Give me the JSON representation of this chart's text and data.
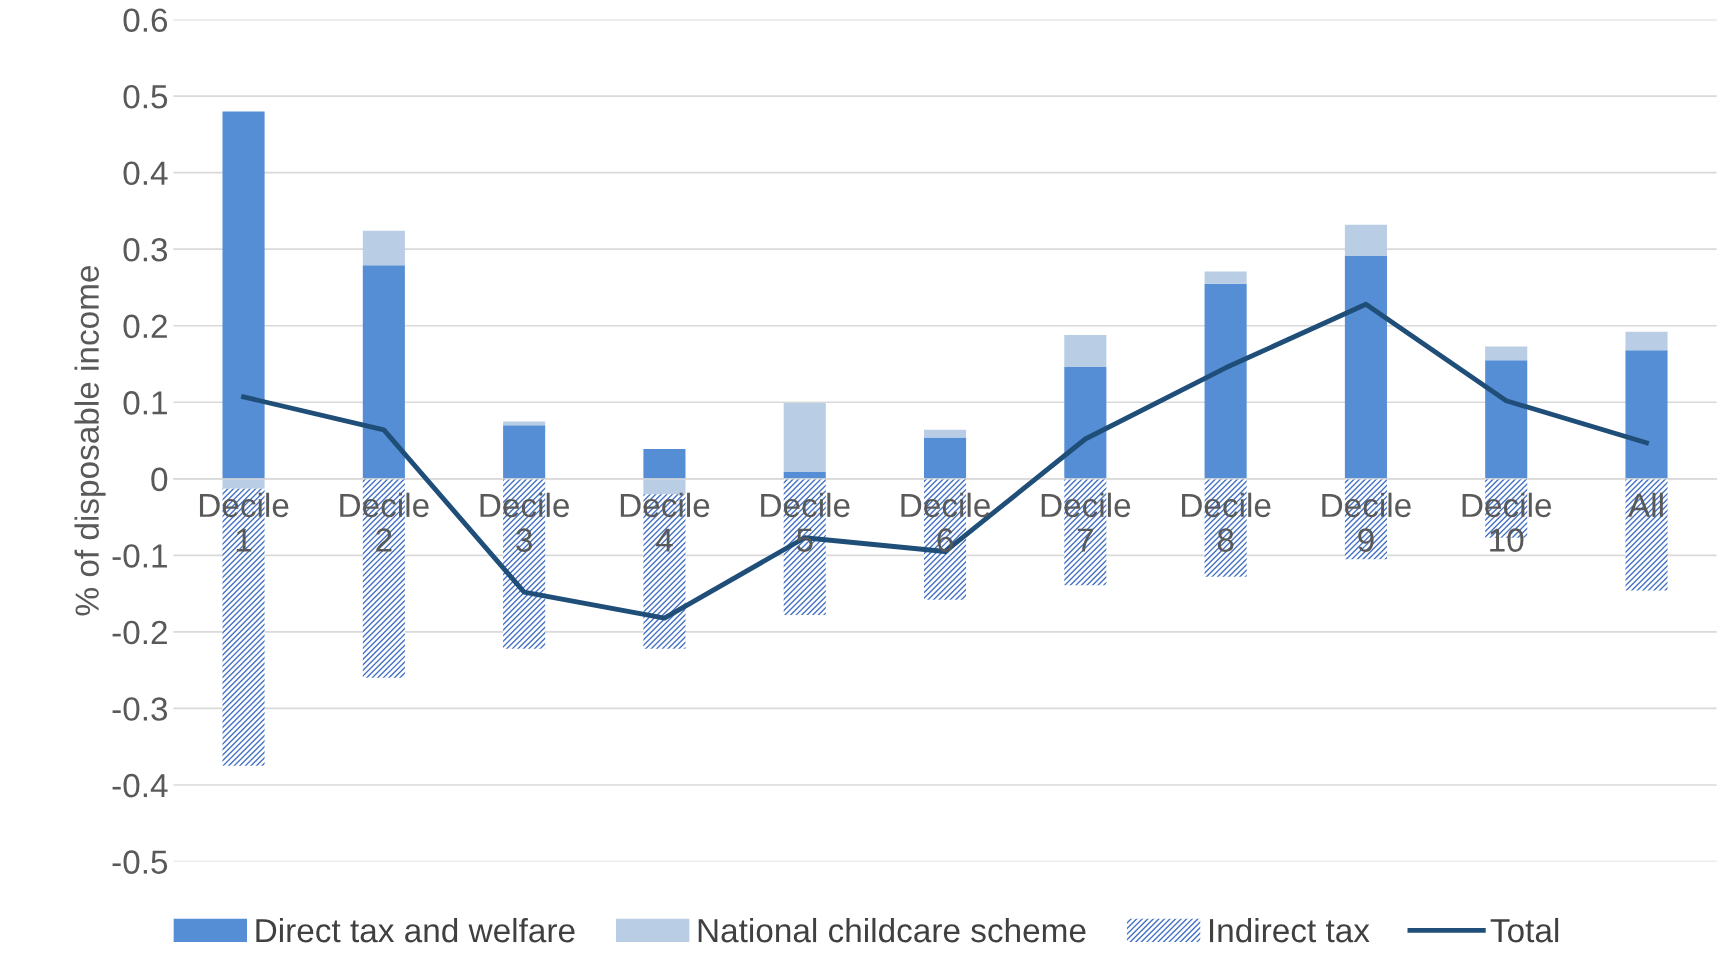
{
  "chart_data": {
    "type": "bar",
    "stacked": true,
    "ylabel": "% of disposable income",
    "categories": [
      "Decile\n1",
      "Decile\n2",
      "Decile\n3",
      "Decile\n4",
      "Decile\n5",
      "Decile\n6",
      "Decile\n7",
      "Decile\n8",
      "Decile\n9",
      "Decile\n10",
      "All"
    ],
    "series": [
      {
        "name": "Direct tax and welfare",
        "color": "#558ed5",
        "values": [
          0.48,
          0.279,
          0.07,
          0.039,
          0.009,
          0.054,
          0.146,
          0.255,
          0.291,
          0.155,
          0.168
        ]
      },
      {
        "name": "National childcare scheme",
        "color": "#b9cde5",
        "values": [
          -0.013,
          0.045,
          0.005,
          -0.02,
          0.09,
          0.01,
          0.042,
          0.016,
          0.041,
          0.018,
          0.024
        ]
      },
      {
        "name": "Indirect tax",
        "color": "#4472c4",
        "values": [
          -0.362,
          -0.26,
          -0.222,
          -0.202,
          -0.178,
          -0.158,
          -0.139,
          -0.128,
          -0.105,
          -0.077,
          -0.146
        ]
      },
      {
        "name": "Total",
        "type": "line",
        "color": "#1f4e79",
        "values": [
          0.107,
          0.064,
          -0.148,
          -0.182,
          -0.077,
          -0.095,
          0.052,
          0.145,
          0.228,
          0.102,
          0.047
        ]
      }
    ],
    "ylim": [
      -0.5,
      0.6
    ],
    "yticks": [
      -0.5,
      -0.4,
      -0.3,
      -0.2,
      -0.1,
      0,
      0.1,
      0.2,
      0.3,
      0.4,
      0.5,
      0.6
    ],
    "grid": "y",
    "legend": "bottom"
  }
}
